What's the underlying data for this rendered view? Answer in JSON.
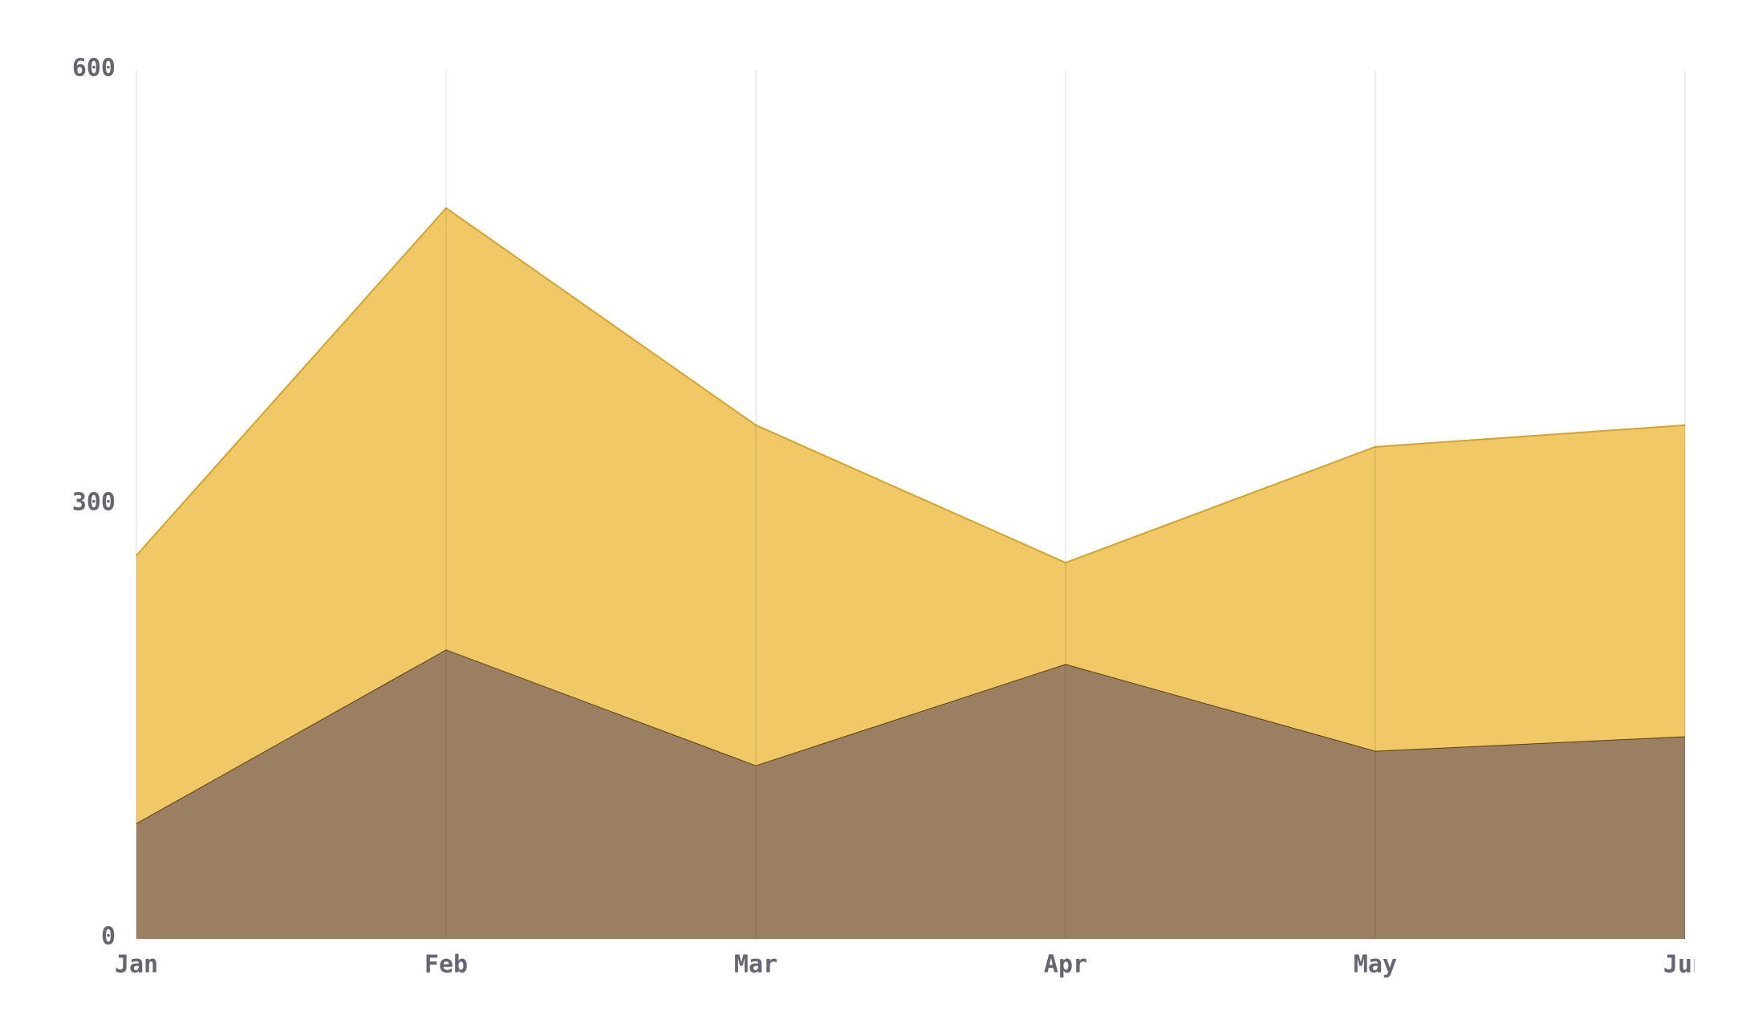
{
  "chart_data": {
    "type": "area",
    "stacked": true,
    "categories": [
      "Jan",
      "Feb",
      "Mar",
      "Apr",
      "May",
      "Jun"
    ],
    "series": [
      {
        "color": "#9b7f62",
        "line_color": "#5c3f1d",
        "values": [
          80,
          200,
          120,
          190,
          130,
          140
        ]
      },
      {
        "color": "#f0c865",
        "line_color": "#d4a32c",
        "values": [
          185,
          305,
          235,
          70,
          210,
          215
        ]
      }
    ],
    "ylim": [
      0,
      600
    ],
    "yticks": [
      0,
      300,
      600
    ],
    "grid": true
  }
}
